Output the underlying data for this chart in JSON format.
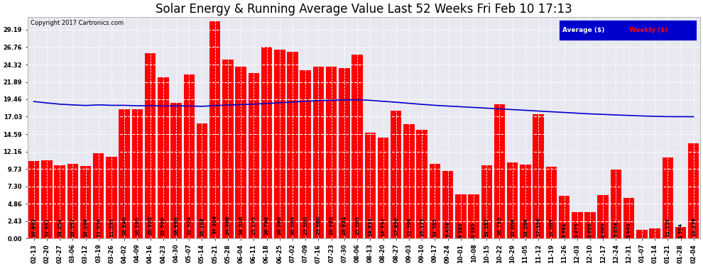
{
  "title": "Solar Energy & Running Average Value Last 52 Weeks Fri Feb 10 17:13",
  "copyright": "Copyright 2017 Cartronics.com",
  "bar_color": "#FF0000",
  "avg_line_color": "#0000CD",
  "background_color": "#FFFFFF",
  "plot_bg_color": "#E8E8F0",
  "grid_color": "#FFFFFF",
  "categories": [
    "02-13",
    "02-20",
    "02-27",
    "03-06",
    "03-12",
    "03-19",
    "03-26",
    "04-02",
    "04-09",
    "04-16",
    "04-23",
    "04-30",
    "05-07",
    "05-14",
    "05-21",
    "05-28",
    "06-04",
    "06-11",
    "06-18",
    "06-25",
    "07-02",
    "07-09",
    "07-16",
    "07-23",
    "07-30",
    "08-06",
    "08-13",
    "08-20",
    "08-27",
    "09-03",
    "09-10",
    "09-17",
    "09-24",
    "10-01",
    "10-08",
    "10-15",
    "10-22",
    "10-29",
    "11-05",
    "11-12",
    "11-19",
    "11-26",
    "12-03",
    "12-10",
    "12-17",
    "12-24",
    "12-31",
    "01-07",
    "01-14",
    "01-21",
    "01-28",
    "02-04"
  ],
  "bar_values": [
    10.803,
    10.881,
    10.254,
    10.392,
    10.108,
    11.95,
    11.395,
    18.046,
    18.065,
    25.925,
    22.5,
    18.99,
    22.924,
    16.108,
    30.388,
    24.996,
    24.016,
    23.175,
    26.796,
    26.369,
    26.069,
    23.5,
    23.98,
    23.985,
    23.831,
    25.665,
    14.831,
    14.095,
    17.852,
    15.966,
    15.171,
    10.385,
    9.478,
    6.182,
    6.185,
    10.187,
    18.793,
    10.668,
    10.288,
    17.326,
    10.069,
    5.961,
    3.675,
    3.695,
    6.069,
    9.654,
    5.641,
    1.21,
    1.384,
    11.335,
    1.554,
    13.276
  ],
  "avg_values": [
    19.15,
    18.95,
    18.78,
    18.68,
    18.6,
    18.68,
    18.62,
    18.62,
    18.55,
    18.58,
    18.52,
    18.55,
    18.52,
    18.48,
    18.58,
    18.65,
    18.72,
    18.78,
    18.88,
    18.98,
    19.08,
    19.18,
    19.28,
    19.32,
    19.38,
    19.4,
    19.32,
    19.18,
    19.05,
    18.9,
    18.75,
    18.62,
    18.52,
    18.42,
    18.32,
    18.22,
    18.12,
    18.02,
    17.92,
    17.82,
    17.72,
    17.62,
    17.52,
    17.42,
    17.35,
    17.27,
    17.2,
    17.13,
    17.08,
    17.04,
    17.03,
    17.03
  ],
  "yticks": [
    0.0,
    2.43,
    4.86,
    7.3,
    9.73,
    12.16,
    14.59,
    17.03,
    19.46,
    21.89,
    24.32,
    26.76,
    29.19
  ],
  "ylim": [
    0,
    31.0
  ],
  "legend_avg_label": "Average ($)",
  "legend_weekly_label": "Weekly ($)",
  "legend_bg_color": "#0000CD",
  "title_fontsize": 12,
  "tick_fontsize": 6,
  "bar_text_fontsize": 5
}
